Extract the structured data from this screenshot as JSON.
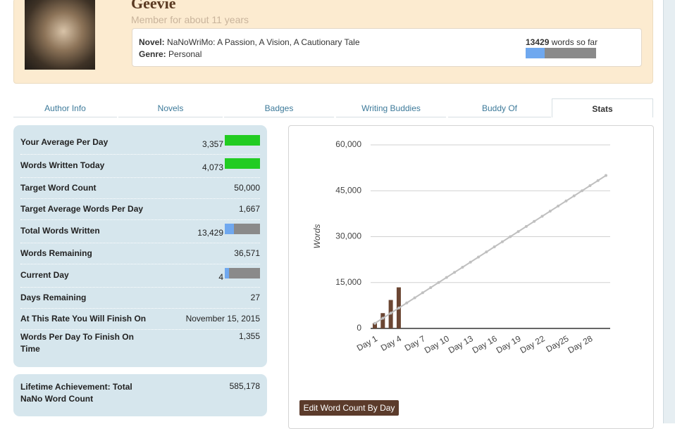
{
  "profile": {
    "name": "Geevie",
    "member": "Member for about 11 years",
    "novel_label": "Novel:",
    "novel": "NaNoWriMo: A Passion, A Vision, A Cautionary Tale",
    "genre_label": "Genre:",
    "genre": "Personal",
    "words": 13429,
    "words_suffix": "words so far"
  },
  "tabs": {
    "items": [
      "Author Info",
      "Novels",
      "Badges",
      "Writing Buddies",
      "Buddy Of",
      "Stats"
    ],
    "active": 5
  },
  "stats": [
    {
      "label": "Your Average Per Day",
      "value": 3357,
      "value_label": "3,357",
      "bar": "#22cc22"
    },
    {
      "label": "Words Written Today",
      "value": 4073,
      "value_label": "4,073",
      "bar": "#22cc22"
    },
    {
      "label": "Target Word Count",
      "value": 50000,
      "value_label": "50,000"
    },
    {
      "label": "Target Average Words Per Day",
      "value": 1667,
      "value_label": "1,667"
    },
    {
      "label": "Total Words Written",
      "value": 13429,
      "value_label": "13,429",
      "bar": "#6fa8ef"
    },
    {
      "label": "Words Remaining",
      "value": 36571,
      "value_label": "36,571"
    },
    {
      "label": "Current Day",
      "value": 4,
      "bar": "#6fa8ef"
    },
    {
      "label": "Days Remaining",
      "value": 27
    },
    {
      "label": "At This Rate You Will Finish On",
      "value": "November 15, 2015"
    },
    {
      "label": "Words Per Day To Finish On Time",
      "value": 1355,
      "value_label": "1,355"
    }
  ],
  "lifetime": {
    "label": "Lifetime Achievement: Total NaNo Word Count",
    "value": 585178,
    "value_label": "585,178"
  },
  "button": "Edit Word Count By Day",
  "chart_data": {
    "type": "bar+line",
    "y_label": "Words",
    "categories": [
      "Day 1",
      null,
      null,
      "Day 4",
      null,
      null,
      "Day 7",
      null,
      null,
      "Day 10",
      null,
      null,
      "Day 13",
      null,
      null,
      "Day 16",
      null,
      null,
      "Day 19",
      null,
      null,
      "Day 22",
      null,
      null,
      "Day25",
      null,
      null,
      "Day 28",
      null,
      null
    ],
    "series": [
      {
        "type": "bar",
        "color": "#6b4633",
        "values": [
          1700,
          5000,
          9300,
          13429,
          null,
          null,
          null,
          null,
          null,
          null,
          null,
          null,
          null,
          null,
          null,
          null,
          null,
          null,
          null,
          null,
          null,
          null,
          null,
          null,
          null,
          null,
          null,
          null,
          null,
          null
        ]
      },
      {
        "type": "line",
        "color": "#c0c0c0",
        "values": [
          1667,
          3333,
          5000,
          6667,
          8333,
          10000,
          11667,
          13333,
          15000,
          16667,
          18333,
          20000,
          21667,
          23333,
          25000,
          26667,
          28333,
          30000,
          31667,
          33333,
          35000,
          36667,
          38333,
          40000,
          41667,
          43333,
          45000,
          46667,
          48333,
          50000
        ]
      }
    ],
    "ylim": [
      0,
      60000
    ],
    "yticks": [
      0,
      {
        "value": 15000,
        "label": "15,000"
      },
      {
        "value": 30000,
        "label": "30,000"
      },
      {
        "value": 45000,
        "label": "45,000"
      },
      {
        "value": 60000,
        "label": "60,000"
      }
    ],
    "grid": true
  }
}
